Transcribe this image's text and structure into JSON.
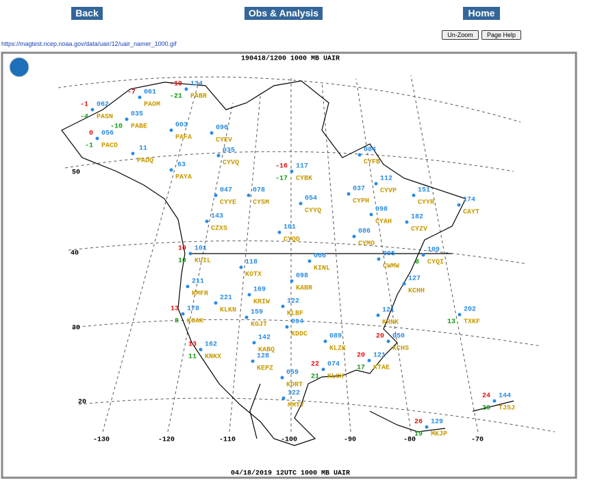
{
  "nav": {
    "back": "Back",
    "obs": "Obs & Analysis",
    "home": "Home"
  },
  "controls": {
    "unzoom": "Un-Zoom",
    "help": "Page Help"
  },
  "url": "https://magtest.ncep.noaa.gov/data/uair/12/uair_namer_1000.gif",
  "map": {
    "header": "190418/1200 1000 MB UAIR",
    "footer": "04/18/2019 12UTC 1000 MB UAIR",
    "lat_labels": [
      "50",
      "40",
      "30",
      "20"
    ],
    "lon_labels": [
      "-130",
      "-120",
      "-110",
      "-100",
      "-90",
      "-80",
      "-70"
    ],
    "stations": [
      {
        "id": "PASN",
        "height": "062",
        "temp": -1,
        "dewpt": -4
      },
      {
        "id": "PAOM",
        "height": "061",
        "temp": -7
      },
      {
        "id": "PABE",
        "height": "035",
        "dewpt": -10
      },
      {
        "id": "PABR",
        "height": "134",
        "temp": -19,
        "dewpt": -21
      },
      {
        "id": "PAFA",
        "height": "003"
      },
      {
        "id": "PACD",
        "height": "056",
        "temp": 0,
        "dewpt": -1
      },
      {
        "id": "PADQ",
        "height": "11"
      },
      {
        "id": "PAYA",
        "height": "63"
      },
      {
        "id": "CYEV",
        "height": "090"
      },
      {
        "id": "CYVQ",
        "height": "035"
      },
      {
        "id": "CYYE",
        "height": "047"
      },
      {
        "id": "CYSM",
        "height": "078"
      },
      {
        "id": "CZXS",
        "height": "143"
      },
      {
        "id": "CYQD",
        "height": "101"
      },
      {
        "id": "CYBK",
        "height": "117",
        "temp": -16,
        "dewpt": -17
      },
      {
        "id": "CYYQ",
        "height": "054"
      },
      {
        "id": "CYPH",
        "height": "037"
      },
      {
        "id": "CYFB",
        "height": "084"
      },
      {
        "id": "CYVP",
        "height": "112"
      },
      {
        "id": "CYYR",
        "height": "151"
      },
      {
        "id": "CAYT",
        "height": "174"
      },
      {
        "id": "CYAH",
        "height": "098"
      },
      {
        "id": "CYZV",
        "height": "182"
      },
      {
        "id": "CYMO",
        "height": "086"
      },
      {
        "id": "CWMW",
        "height": "095"
      },
      {
        "id": "CYQI",
        "height": "109",
        "dewpt": 8
      },
      {
        "id": "KUIL",
        "height": "101",
        "temp": 10,
        "dewpt": 10
      },
      {
        "id": "KOTX",
        "height": "118"
      },
      {
        "id": "KMFR",
        "height": "211"
      },
      {
        "id": "KLKN",
        "height": "221"
      },
      {
        "id": "KRIW",
        "height": "169"
      },
      {
        "id": "KGJT",
        "height": "159"
      },
      {
        "id": "KOAK",
        "height": "178",
        "temp": 13,
        "dewpt": 8
      },
      {
        "id": "KNKX",
        "height": "162",
        "temp": 13,
        "dewpt": 11
      },
      {
        "id": "KABQ",
        "height": "142"
      },
      {
        "id": "KEPZ",
        "height": "128"
      },
      {
        "id": "KABR",
        "height": "098"
      },
      {
        "id": "KINL",
        "height": "066"
      },
      {
        "id": "KLBF",
        "height": "122"
      },
      {
        "id": "KDDC",
        "height": "094"
      },
      {
        "id": "KLZK",
        "height": "089"
      },
      {
        "id": "KDRT",
        "height": "059"
      },
      {
        "id": "KLCH",
        "height": "074",
        "temp": 22,
        "dewpt": 21
      },
      {
        "id": "KTAE",
        "height": "121",
        "temp": 20,
        "dewpt": 17
      },
      {
        "id": "KCHS",
        "height": "050",
        "temp": 20
      },
      {
        "id": "KRNK",
        "height": "121"
      },
      {
        "id": "KCHH",
        "height": "127"
      },
      {
        "id": "TXKF",
        "height": "202",
        "dewpt": 13
      },
      {
        "id": "MMTY",
        "height": "122"
      },
      {
        "id": "MKJP",
        "height": "129",
        "temp": 26,
        "dewpt": 19
      },
      {
        "id": "TJSJ",
        "height": "144",
        "temp": 24,
        "dewpt": 20
      }
    ]
  }
}
